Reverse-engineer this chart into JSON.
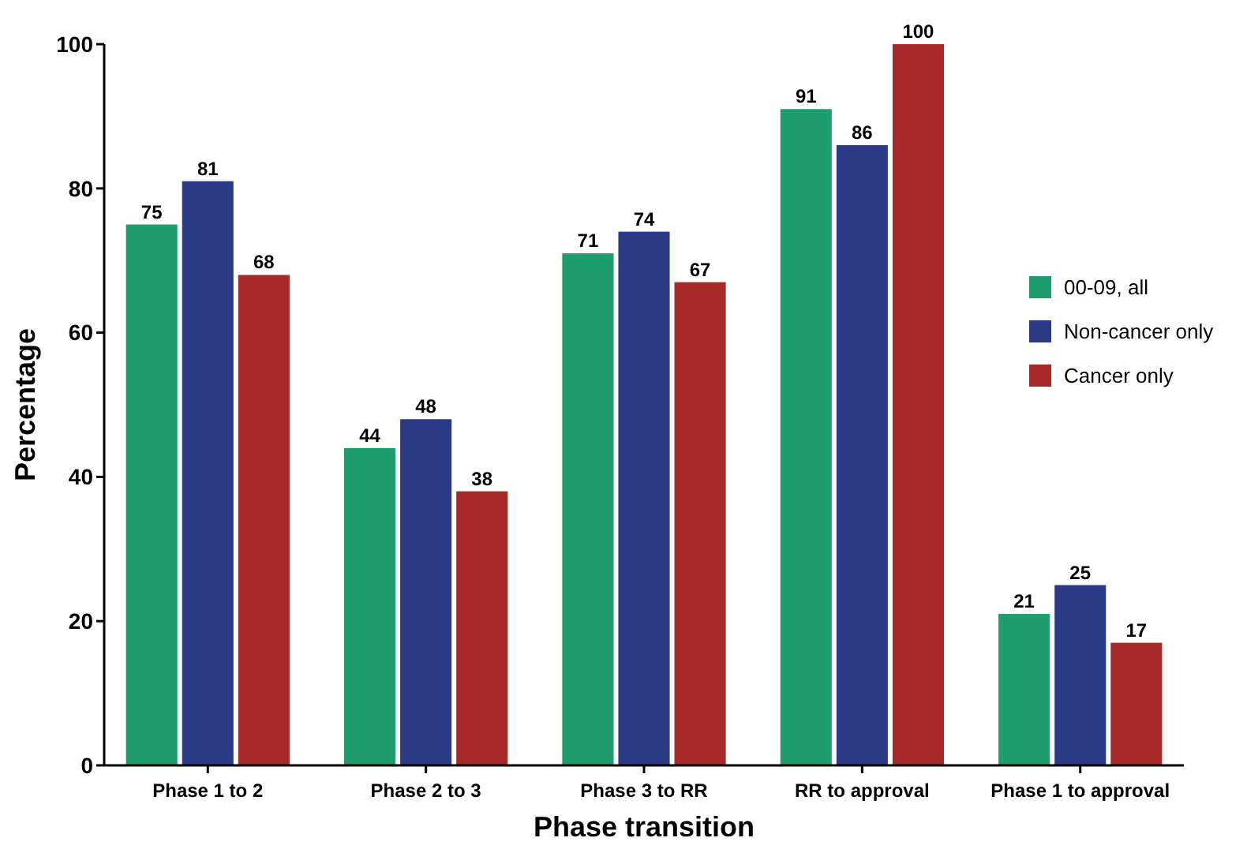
{
  "chart_data": {
    "type": "bar",
    "xlabel": "Phase transition",
    "ylabel": "Percentage",
    "categories": [
      "Phase 1 to 2",
      "Phase 2 to 3",
      "Phase 3 to RR",
      "RR to approval",
      "Phase 1 to approval"
    ],
    "series": [
      {
        "name": "00-09, all",
        "color": "#1e9e6e",
        "values": [
          75,
          44,
          71,
          91,
          21
        ]
      },
      {
        "name": "Non-cancer only",
        "color": "#2b3a87",
        "values": [
          81,
          48,
          74,
          86,
          25
        ]
      },
      {
        "name": "Cancer only",
        "color": "#a8292a",
        "values": [
          68,
          38,
          67,
          100,
          17
        ]
      }
    ],
    "ylim": [
      0,
      100
    ],
    "yticks": [
      0,
      20,
      40,
      60,
      80,
      100
    ],
    "data_labels": true,
    "legend": "right",
    "grid": false
  }
}
